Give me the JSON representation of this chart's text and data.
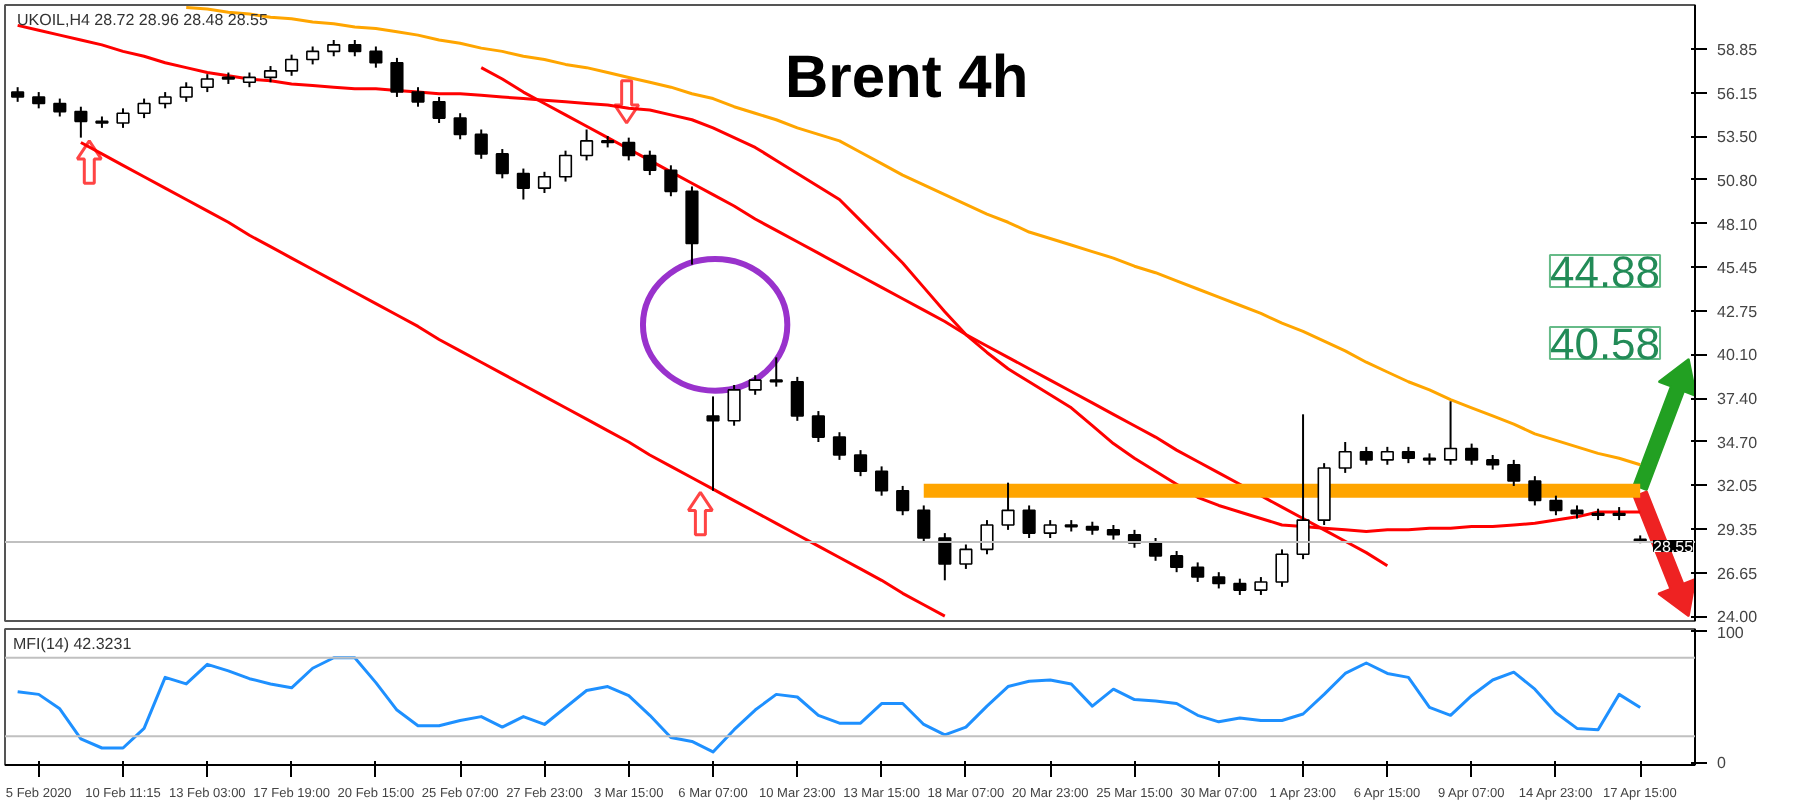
{
  "chart_data": [
    {
      "type": "candlestick",
      "title": "Brent 4h",
      "tick_labels": "y",
      "annotations": [
        "UKOIL,H4 28.72 28.96 28.48 28.55",
        "44.88",
        "40.58"
      ],
      "ylim": [
        23.7,
        61.55
      ],
      "yticks": [
        {
          "value": 58.85,
          "label": "58.85"
        },
        {
          "value": 56.15,
          "label": "56.15"
        },
        {
          "value": 53.5,
          "label": "53.50"
        },
        {
          "value": 50.8,
          "label": "50.80"
        },
        {
          "value": 48.1,
          "label": "48.10"
        },
        {
          "value": 45.45,
          "label": "45.45"
        },
        {
          "value": 42.75,
          "label": "42.75"
        },
        {
          "value": 40.1,
          "label": "40.10"
        },
        {
          "value": 37.4,
          "label": "37.40"
        },
        {
          "value": 34.7,
          "label": "34.70"
        },
        {
          "value": 32.05,
          "label": "32.05"
        },
        {
          "value": 29.35,
          "label": "29.35"
        },
        {
          "value": 26.65,
          "label": "26.65"
        },
        {
          "value": 24.0,
          "label": "24.00"
        }
      ],
      "ref_lines": [
        {
          "axis": "y",
          "value": 28.55,
          "label": "28.55",
          "color": "#c0c0c0"
        }
      ],
      "categories": [
        null,
        null,
        null,
        null,
        null,
        null,
        null,
        null,
        null,
        null,
        null,
        null,
        null,
        null,
        null,
        null,
        null,
        null,
        null,
        null,
        null,
        null,
        null,
        null,
        null,
        null,
        null,
        null,
        null,
        null,
        null,
        null,
        null,
        null,
        null,
        null,
        null,
        null,
        null,
        null,
        null,
        null,
        null,
        null,
        null,
        null,
        null,
        null,
        null,
        null,
        null,
        null,
        null,
        null,
        null,
        null,
        null,
        null,
        null,
        null,
        null,
        null,
        null,
        null,
        null,
        null,
        null,
        null,
        null,
        null,
        null,
        null,
        null,
        null,
        null,
        null,
        null,
        null
      ],
      "ohlc": [
        [
          56.2,
          56.5,
          55.6,
          55.9
        ],
        [
          55.9,
          56.2,
          55.2,
          55.5
        ],
        [
          55.5,
          55.8,
          54.7,
          55.0
        ],
        [
          55.0,
          55.3,
          53.4,
          54.4
        ],
        [
          54.4,
          54.7,
          54.0,
          54.3
        ],
        [
          54.3,
          55.2,
          54.0,
          54.9
        ],
        [
          54.9,
          55.8,
          54.6,
          55.5
        ],
        [
          55.5,
          56.2,
          55.2,
          55.9
        ],
        [
          55.9,
          56.8,
          55.6,
          56.5
        ],
        [
          56.5,
          57.3,
          56.2,
          57.0
        ],
        [
          57.0,
          57.4,
          56.7,
          57.1
        ],
        [
          56.8,
          57.4,
          56.5,
          57.1
        ],
        [
          57.1,
          57.8,
          56.8,
          57.5
        ],
        [
          57.5,
          58.5,
          57.2,
          58.2
        ],
        [
          58.2,
          59.0,
          57.9,
          58.7
        ],
        [
          58.7,
          59.4,
          58.4,
          59.1
        ],
        [
          59.1,
          59.4,
          58.4,
          58.7
        ],
        [
          58.7,
          59.0,
          57.7,
          58.0
        ],
        [
          58.0,
          58.3,
          55.9,
          56.2
        ],
        [
          56.2,
          56.5,
          55.3,
          55.6
        ],
        [
          55.6,
          55.9,
          54.3,
          54.6
        ],
        [
          54.6,
          54.9,
          53.3,
          53.6
        ],
        [
          53.6,
          53.9,
          52.1,
          52.4
        ],
        [
          52.4,
          52.7,
          50.9,
          51.2
        ],
        [
          51.2,
          51.5,
          49.6,
          50.3
        ],
        [
          50.3,
          51.3,
          50.0,
          51.0
        ],
        [
          51.0,
          52.6,
          50.7,
          52.3
        ],
        [
          52.3,
          53.9,
          52.0,
          53.2
        ],
        [
          53.2,
          53.5,
          52.8,
          53.1
        ],
        [
          53.1,
          53.4,
          52.0,
          52.3
        ],
        [
          52.3,
          52.6,
          51.1,
          51.4
        ],
        [
          51.4,
          51.7,
          49.8,
          50.1
        ],
        [
          50.1,
          50.4,
          45.6,
          46.9
        ],
        [
          36.3,
          37.5,
          31.7,
          36.0
        ],
        [
          36.0,
          38.2,
          35.7,
          37.9
        ],
        [
          37.9,
          38.8,
          37.6,
          38.5
        ],
        [
          38.5,
          39.9,
          38.1,
          38.4
        ],
        [
          38.4,
          38.7,
          36.0,
          36.3
        ],
        [
          36.3,
          36.6,
          34.7,
          35.0
        ],
        [
          35.0,
          35.3,
          33.6,
          33.9
        ],
        [
          33.9,
          34.2,
          32.6,
          32.9
        ],
        [
          32.9,
          33.2,
          31.4,
          31.7
        ],
        [
          31.7,
          32.0,
          30.2,
          30.5
        ],
        [
          30.5,
          30.8,
          28.5,
          28.8
        ],
        [
          28.8,
          29.1,
          26.2,
          27.2
        ],
        [
          27.2,
          28.4,
          26.9,
          28.1
        ],
        [
          28.1,
          29.9,
          27.8,
          29.6
        ],
        [
          29.6,
          32.2,
          29.3,
          30.5
        ],
        [
          30.5,
          30.8,
          28.8,
          29.1
        ],
        [
          29.1,
          29.9,
          28.8,
          29.6
        ],
        [
          29.6,
          29.9,
          29.2,
          29.5
        ],
        [
          29.5,
          29.8,
          29.0,
          29.3
        ],
        [
          29.3,
          29.6,
          28.7,
          29.0
        ],
        [
          29.0,
          29.3,
          28.2,
          28.5
        ],
        [
          28.5,
          28.8,
          27.4,
          27.7
        ],
        [
          27.7,
          28.0,
          26.7,
          27.0
        ],
        [
          27.0,
          27.3,
          26.1,
          26.4
        ],
        [
          26.4,
          26.7,
          25.7,
          26.0
        ],
        [
          26.0,
          26.3,
          25.3,
          25.6
        ],
        [
          25.6,
          26.4,
          25.3,
          26.1
        ],
        [
          26.1,
          28.1,
          25.8,
          27.8
        ],
        [
          27.8,
          36.4,
          27.5,
          29.9
        ],
        [
          29.9,
          33.4,
          29.6,
          33.1
        ],
        [
          33.1,
          34.7,
          32.8,
          34.1
        ],
        [
          34.1,
          34.4,
          33.3,
          33.6
        ],
        [
          33.6,
          34.4,
          33.3,
          34.1
        ],
        [
          34.1,
          34.4,
          33.4,
          33.7
        ],
        [
          33.7,
          34.0,
          33.3,
          33.6
        ],
        [
          33.6,
          37.2,
          33.3,
          34.3
        ],
        [
          34.3,
          34.6,
          33.3,
          33.6
        ],
        [
          33.6,
          33.9,
          33.0,
          33.3
        ],
        [
          33.3,
          33.6,
          32.0,
          32.3
        ],
        [
          32.3,
          32.6,
          30.8,
          31.1
        ],
        [
          31.1,
          31.4,
          30.2,
          30.5
        ],
        [
          30.5,
          30.8,
          30.0,
          30.3
        ],
        [
          30.3,
          30.6,
          29.9,
          30.2
        ],
        [
          30.2,
          30.7,
          29.9,
          30.3
        ],
        [
          28.72,
          28.96,
          28.48,
          28.55
        ]
      ],
      "series": [
        {
          "type": "line",
          "color": "#ffa500",
          "values": [
            null,
            null,
            null,
            null,
            null,
            null,
            null,
            null,
            61.4,
            61.3,
            61.1,
            61.0,
            60.8,
            60.7,
            60.5,
            60.4,
            60.2,
            60.1,
            59.9,
            59.7,
            59.4,
            59.2,
            58.9,
            58.7,
            58.4,
            58.2,
            57.9,
            57.7,
            57.4,
            57.1,
            56.8,
            56.5,
            56.1,
            55.8,
            55.3,
            54.9,
            54.5,
            54.0,
            53.6,
            53.2,
            52.5,
            51.8,
            51.1,
            50.5,
            49.9,
            49.3,
            48.7,
            48.2,
            47.6,
            47.2,
            46.8,
            46.4,
            46.0,
            45.5,
            45.1,
            44.6,
            44.1,
            43.6,
            43.1,
            42.6,
            42.0,
            41.5,
            40.9,
            40.3,
            39.6,
            39.0,
            38.4,
            37.9,
            37.3,
            36.8,
            36.3,
            35.8,
            35.2,
            34.8,
            34.4,
            34.0,
            33.7,
            33.3
          ]
        },
        {
          "type": "line",
          "color": "#ff0000",
          "values": [
            60.3,
            60.0,
            59.7,
            59.4,
            59.1,
            58.7,
            58.4,
            58.0,
            57.7,
            57.4,
            57.2,
            57.0,
            56.9,
            56.7,
            56.6,
            56.5,
            56.4,
            56.4,
            56.3,
            56.2,
            56.1,
            56.1,
            56.0,
            55.9,
            55.8,
            55.7,
            55.6,
            55.5,
            55.4,
            55.2,
            55.1,
            54.8,
            54.5,
            54.0,
            53.4,
            52.8,
            52.0,
            51.2,
            50.4,
            49.6,
            48.3,
            47.0,
            45.7,
            44.2,
            42.7,
            41.3,
            40.2,
            39.2,
            38.4,
            37.6,
            36.8,
            35.7,
            34.6,
            33.7,
            32.9,
            32.1,
            31.3,
            30.8,
            30.4,
            30.0,
            29.6,
            29.5,
            29.4,
            29.3,
            29.2,
            29.3,
            29.3,
            29.4,
            29.4,
            29.5,
            29.5,
            29.6,
            29.7,
            29.9,
            30.1,
            30.4,
            30.4,
            30.4
          ]
        },
        {
          "type": "line",
          "color": "#ff0000",
          "values": [
            null,
            null,
            null,
            null,
            null,
            null,
            null,
            null,
            null,
            null,
            null,
            null,
            null,
            null,
            null,
            null,
            null,
            null,
            null,
            null,
            null,
            null,
            57.7,
            57.0,
            56.2,
            55.5,
            54.8,
            54.1,
            53.4,
            52.7,
            52.0,
            51.3,
            50.6,
            49.9,
            49.2,
            48.4,
            47.7,
            47.0,
            46.3,
            45.6,
            44.9,
            44.2,
            43.5,
            42.8,
            42.1,
            41.3,
            40.6,
            39.9,
            39.2,
            38.5,
            37.8,
            37.1,
            36.4,
            35.7,
            35.0,
            34.2,
            33.5,
            32.8,
            32.1,
            31.4,
            30.7,
            30.0,
            29.3,
            28.6,
            27.9,
            27.1,
            null,
            null,
            null,
            null,
            null,
            null,
            null,
            null,
            null,
            null,
            null,
            null
          ]
        },
        {
          "type": "line",
          "color": "#ff0000",
          "values": [
            null,
            null,
            null,
            53.1,
            52.4,
            51.7,
            51.0,
            50.3,
            49.6,
            48.9,
            48.2,
            47.4,
            46.7,
            46.0,
            45.3,
            44.6,
            43.9,
            43.2,
            42.5,
            41.8,
            41.0,
            40.3,
            39.6,
            38.9,
            38.2,
            37.5,
            36.8,
            36.1,
            35.4,
            34.7,
            33.9,
            33.2,
            32.5,
            31.8,
            31.1,
            30.4,
            29.7,
            29.0,
            28.3,
            27.6,
            26.9,
            26.2,
            25.4,
            24.7,
            24.0,
            null,
            null,
            null,
            null,
            null,
            null,
            null,
            null,
            null,
            null,
            null,
            null,
            null,
            null,
            null,
            null,
            null,
            null,
            null,
            null,
            null,
            null,
            null,
            null,
            null,
            null,
            null,
            null,
            null,
            null,
            null,
            null,
            null
          ]
        },
        {
          "type": "line",
          "color": "#ffa500",
          "values": [
            null,
            null,
            null,
            null,
            null,
            null,
            null,
            null,
            null,
            null,
            null,
            null,
            null,
            null,
            null,
            null,
            null,
            null,
            null,
            null,
            null,
            null,
            null,
            null,
            null,
            null,
            null,
            null,
            null,
            null,
            null,
            null,
            null,
            null,
            null,
            null,
            null,
            null,
            null,
            null,
            null,
            null,
            null,
            31.7,
            31.7,
            31.7,
            31.7,
            31.7,
            31.7,
            31.7,
            31.7,
            31.7,
            31.7,
            31.7,
            31.7,
            31.7,
            31.7,
            31.7,
            31.7,
            31.7,
            31.7,
            31.7,
            31.7,
            31.7,
            31.7,
            31.7,
            31.7,
            31.7,
            31.7,
            31.7,
            31.7,
            31.7,
            31.7,
            31.7,
            31.7,
            31.7,
            31.7,
            31.7
          ]
        }
      ]
    },
    {
      "type": "line",
      "title": "MFI(14) 42.3231",
      "ylim": [
        -2,
        102
      ],
      "yticks": [
        0,
        100
      ],
      "ref_lines": [
        {
          "axis": "y",
          "value": 80,
          "color": "#c0c0c0"
        },
        {
          "axis": "y",
          "value": 20,
          "color": "#c0c0c0"
        }
      ],
      "categories": [
        null,
        "5 Feb 2020",
        null,
        null,
        null,
        "10 Feb 11:15",
        null,
        null,
        null,
        "13 Feb 03:00",
        null,
        null,
        null,
        "17 Feb 19:00",
        null,
        null,
        null,
        "20 Feb 15:00",
        null,
        null,
        null,
        "25 Feb 07:00",
        null,
        null,
        null,
        "27 Feb 23:00",
        null,
        null,
        null,
        "3 Mar 15:00",
        null,
        null,
        null,
        "6 Mar 07:00",
        null,
        null,
        null,
        "10 Mar 23:00",
        null,
        null,
        null,
        "13 Mar 15:00",
        null,
        null,
        null,
        "18 Mar 07:00",
        null,
        null,
        null,
        "20 Mar 23:00",
        null,
        null,
        null,
        "25 Mar 15:00",
        null,
        null,
        null,
        "30 Mar 07:00",
        null,
        null,
        null,
        "1 Apr 23:00",
        null,
        null,
        null,
        "6 Apr 15:00",
        null,
        null,
        null,
        "9 Apr 07:00",
        null,
        null,
        null,
        "14 Apr 23:00",
        null,
        null,
        null,
        "17 Apr 15:00"
      ],
      "series": [
        {
          "color": "#1e90ff",
          "values": [
            54,
            52,
            41,
            18,
            11,
            11,
            26,
            65,
            60,
            75,
            70,
            64,
            60,
            57,
            72,
            80,
            80,
            61,
            40,
            28,
            28,
            32,
            35,
            27,
            35,
            29,
            42,
            55,
            58,
            51,
            36,
            19,
            16,
            8,
            25,
            40,
            52,
            50,
            36,
            30,
            30,
            45,
            45,
            29,
            21,
            27,
            43,
            58,
            62,
            63,
            60,
            43,
            56,
            48,
            47,
            45,
            36,
            31,
            34,
            32,
            32,
            37,
            52,
            68,
            76,
            68,
            65,
            42,
            36,
            51,
            63,
            69,
            56,
            38,
            26,
            25,
            52,
            42
          ]
        }
      ]
    }
  ]
}
